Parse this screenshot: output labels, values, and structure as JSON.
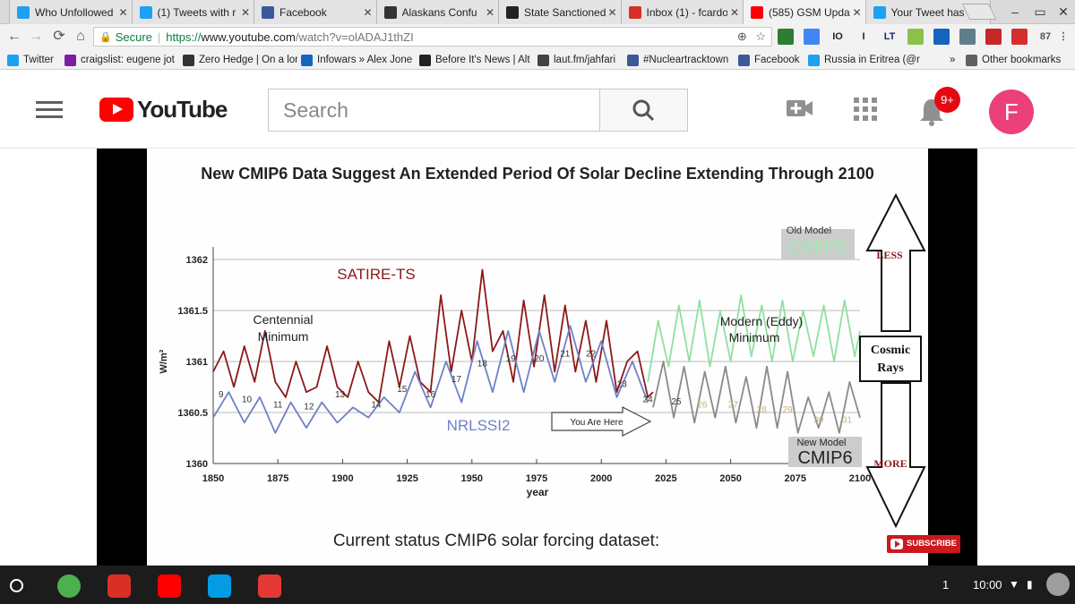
{
  "browser": {
    "tabs": [
      {
        "title": "Who Unfollowed",
        "favicon": "twitter-icon",
        "active": false
      },
      {
        "title": "(1) Tweets with r",
        "favicon": "twitter-icon",
        "active": false
      },
      {
        "title": "Facebook",
        "favicon": "facebook-icon",
        "active": false
      },
      {
        "title": "Alaskans Confu",
        "favicon": "zerohedge-icon",
        "active": false
      },
      {
        "title": "State Sanctioned",
        "favicon": "news-icon",
        "active": false
      },
      {
        "title": "Inbox (1) - fcardo",
        "favicon": "gmail-icon",
        "active": false
      },
      {
        "title": "(585) GSM Upda",
        "favicon": "youtube-icon",
        "active": true
      },
      {
        "title": "Your Tweet has b",
        "favicon": "twitter-icon",
        "active": false
      }
    ],
    "tab_close": "✕",
    "window_controls": {
      "minimize": "–",
      "maximize": "▭",
      "close": "✕"
    },
    "omnibox": {
      "secure_label": "Secure",
      "url_scheme": "https://",
      "url_host": "www.youtube.com",
      "url_path": "/watch?v=olADAJ1thZI"
    },
    "extensions": [
      {
        "label": "",
        "color": "#2e7d32"
      },
      {
        "label": "",
        "color": "#4285f4"
      },
      {
        "label": "IO",
        "color": "#222222"
      },
      {
        "label": "I",
        "color": "#222222"
      },
      {
        "label": "LT",
        "color": "#1a237e"
      },
      {
        "label": "",
        "color": "#8bc34a"
      },
      {
        "label": "",
        "color": "#1565c0"
      },
      {
        "label": "",
        "color": "#607d8b"
      },
      {
        "label": "",
        "color": "#c62828"
      },
      {
        "label": "",
        "color": "#d32f2f"
      },
      {
        "label": "87",
        "color": "#555555"
      }
    ],
    "bookmarks": [
      {
        "label": "Twitter",
        "favicon": "twitter-icon"
      },
      {
        "label": "craigslist: eugene jot",
        "favicon": "peace-icon"
      },
      {
        "label": "Zero Hedge | On a lor",
        "favicon": "zerohedge-icon"
      },
      {
        "label": "Infowars » Alex Jone",
        "favicon": "infowars-icon"
      },
      {
        "label": "Before It's News | Alt",
        "favicon": "news-icon"
      },
      {
        "label": "laut.fm/jahfari",
        "favicon": "radio-icon"
      },
      {
        "label": "#Nucleartracktown",
        "favicon": "facebook-icon"
      },
      {
        "label": "Facebook",
        "favicon": "facebook-icon"
      },
      {
        "label": "Russia in Eritrea (@r",
        "favicon": "twitter-icon"
      }
    ],
    "bookmarks_overflow": "»",
    "other_bookmarks": "Other bookmarks"
  },
  "youtube": {
    "logo_text": "YouTube",
    "search_placeholder": "Search",
    "notification_count": "9+",
    "avatar_letter": "F",
    "subscribe_label": "SUBSCRIBE"
  },
  "chart_data": {
    "type": "line",
    "title": "New CMIP6 Data Suggest  An Extended Period Of Solar Decline Extending Through 2100",
    "xlabel": "year",
    "ylabel": "W/m²",
    "xlim": [
      1850,
      2100
    ],
    "ylim": [
      1360,
      1362.2
    ],
    "xticks": [
      "1850",
      "1875",
      "1900",
      "1925",
      "1950",
      "1975",
      "2000",
      "2025",
      "2050",
      "2075",
      "2100"
    ],
    "yticks": [
      "1360",
      "1360.5",
      "1361",
      "1361.5",
      "1362"
    ],
    "grid": true,
    "series": [
      {
        "name": "SATIRE-TS",
        "color": "#8b1a1a",
        "x": [
          1850,
          1854,
          1858,
          1862,
          1866,
          1870,
          1874,
          1878,
          1882,
          1886,
          1890,
          1894,
          1898,
          1902,
          1906,
          1910,
          1914,
          1918,
          1922,
          1926,
          1930,
          1934,
          1938,
          1942,
          1946,
          1950,
          1954,
          1958,
          1962,
          1966,
          1970,
          1974,
          1978,
          1982,
          1986,
          1990,
          1994,
          1998,
          2002,
          2006,
          2010,
          2014,
          2018,
          2020
        ],
        "values": [
          1360.9,
          1361.1,
          1360.75,
          1361.15,
          1360.8,
          1361.3,
          1360.8,
          1360.65,
          1361.0,
          1360.7,
          1360.75,
          1361.15,
          1360.75,
          1360.65,
          1361.0,
          1360.7,
          1360.6,
          1361.2,
          1360.75,
          1361.25,
          1360.8,
          1360.7,
          1361.65,
          1360.9,
          1361.5,
          1361.0,
          1361.9,
          1361.1,
          1361.3,
          1360.8,
          1361.6,
          1360.95,
          1361.65,
          1360.9,
          1361.55,
          1360.9,
          1361.4,
          1360.8,
          1361.4,
          1360.7,
          1361.0,
          1361.1,
          1360.65,
          1360.7
        ]
      },
      {
        "name": "NRLSSI2",
        "color": "#7080c8",
        "x": [
          1850,
          1856,
          1862,
          1868,
          1874,
          1880,
          1886,
          1892,
          1898,
          1904,
          1910,
          1916,
          1922,
          1928,
          1934,
          1940,
          1946,
          1952,
          1958,
          1964,
          1970,
          1976,
          1982,
          1988,
          1994,
          2000,
          2006,
          2012,
          2018
        ],
        "values": [
          1360.45,
          1360.7,
          1360.4,
          1360.65,
          1360.3,
          1360.6,
          1360.35,
          1360.6,
          1360.4,
          1360.55,
          1360.45,
          1360.65,
          1360.5,
          1360.9,
          1360.55,
          1361.0,
          1360.6,
          1361.2,
          1360.7,
          1361.3,
          1360.7,
          1361.3,
          1360.8,
          1361.35,
          1360.8,
          1361.2,
          1360.65,
          1361.0,
          1360.6
        ]
      },
      {
        "name": "CMIP5",
        "color": "#90e0a0",
        "x": [
          2018,
          2022,
          2026,
          2030,
          2034,
          2038,
          2042,
          2046,
          2050,
          2054,
          2058,
          2062,
          2066,
          2070,
          2074,
          2078,
          2082,
          2086,
          2090,
          2094,
          2098,
          2100
        ],
        "values": [
          1360.8,
          1361.4,
          1360.95,
          1361.55,
          1361.0,
          1361.6,
          1360.95,
          1361.5,
          1361.0,
          1361.65,
          1361.05,
          1361.55,
          1361.0,
          1361.6,
          1361.0,
          1361.5,
          1361.05,
          1361.55,
          1361.0,
          1361.6,
          1361.05,
          1361.3
        ]
      },
      {
        "name": "CMIP6",
        "color": "#8a8a8a",
        "x": [
          2020,
          2024,
          2028,
          2032,
          2036,
          2040,
          2044,
          2048,
          2052,
          2056,
          2060,
          2064,
          2068,
          2072,
          2076,
          2080,
          2084,
          2088,
          2092,
          2096,
          2100
        ],
        "values": [
          1360.55,
          1361.0,
          1360.45,
          1360.95,
          1360.4,
          1360.9,
          1360.45,
          1360.95,
          1360.4,
          1360.85,
          1360.35,
          1360.95,
          1360.35,
          1360.9,
          1360.3,
          1360.65,
          1360.35,
          1360.7,
          1360.3,
          1360.8,
          1360.45
        ]
      }
    ],
    "cycle_labels": [
      {
        "text": "9",
        "x": 1853,
        "y": 1360.65
      },
      {
        "text": "10",
        "x": 1863,
        "y": 1360.6
      },
      {
        "text": "11",
        "x": 1875,
        "y": 1360.55
      },
      {
        "text": "12",
        "x": 1887,
        "y": 1360.53
      },
      {
        "text": "13",
        "x": 1899,
        "y": 1360.65
      },
      {
        "text": "14",
        "x": 1913,
        "y": 1360.55
      },
      {
        "text": "15",
        "x": 1923,
        "y": 1360.7
      },
      {
        "text": "16",
        "x": 1934,
        "y": 1360.65
      },
      {
        "text": "17",
        "x": 1944,
        "y": 1360.8
      },
      {
        "text": "18",
        "x": 1954,
        "y": 1360.95
      },
      {
        "text": "19",
        "x": 1965,
        "y": 1361.0
      },
      {
        "text": "20",
        "x": 1976,
        "y": 1361.0
      },
      {
        "text": "21",
        "x": 1986,
        "y": 1361.05
      },
      {
        "text": "22",
        "x": 1996,
        "y": 1361.05
      },
      {
        "text": "23",
        "x": 2008,
        "y": 1360.75
      },
      {
        "text": "24",
        "x": 2018,
        "y": 1360.6
      },
      {
        "text": "25",
        "x": 2029,
        "y": 1360.58
      },
      {
        "text": "26",
        "x": 2039,
        "y": 1360.55
      },
      {
        "text": "27",
        "x": 2051,
        "y": 1360.55
      },
      {
        "text": "28",
        "x": 2062,
        "y": 1360.5
      },
      {
        "text": "29",
        "x": 2072,
        "y": 1360.5
      },
      {
        "text": "30",
        "x": 2084,
        "y": 1360.4
      },
      {
        "text": "31",
        "x": 2095,
        "y": 1360.4
      }
    ],
    "annotations": {
      "old_model": "Old Model",
      "cmip5": "CMIP5",
      "new_model": "New Model",
      "cmip6": "CMIP6",
      "satire": "SATIRE-TS",
      "nrlssi": "NRLSSI2",
      "centennial_1": "Centennial",
      "centennial_2": "Minimum",
      "modern_1": "Modern (Eddy)",
      "modern_2": "Minimum",
      "you_are_here": "You Are Here",
      "less": "LESS",
      "more": "MORE",
      "cosmic_1": "Cosmic",
      "cosmic_2": "Rays",
      "footer": "Current status CMIP6 solar forcing dataset:"
    }
  },
  "shelf": {
    "apps": [
      {
        "name": "chrome-icon",
        "color": "#4caf50"
      },
      {
        "name": "gmail-icon",
        "color": "#d93025"
      },
      {
        "name": "youtube-icon",
        "color": "#ff0000"
      },
      {
        "name": "camera-icon",
        "color": "#039be5"
      },
      {
        "name": "newsmax-icon",
        "color": "#e53935"
      }
    ],
    "notifications": "1",
    "time": "10:00"
  }
}
